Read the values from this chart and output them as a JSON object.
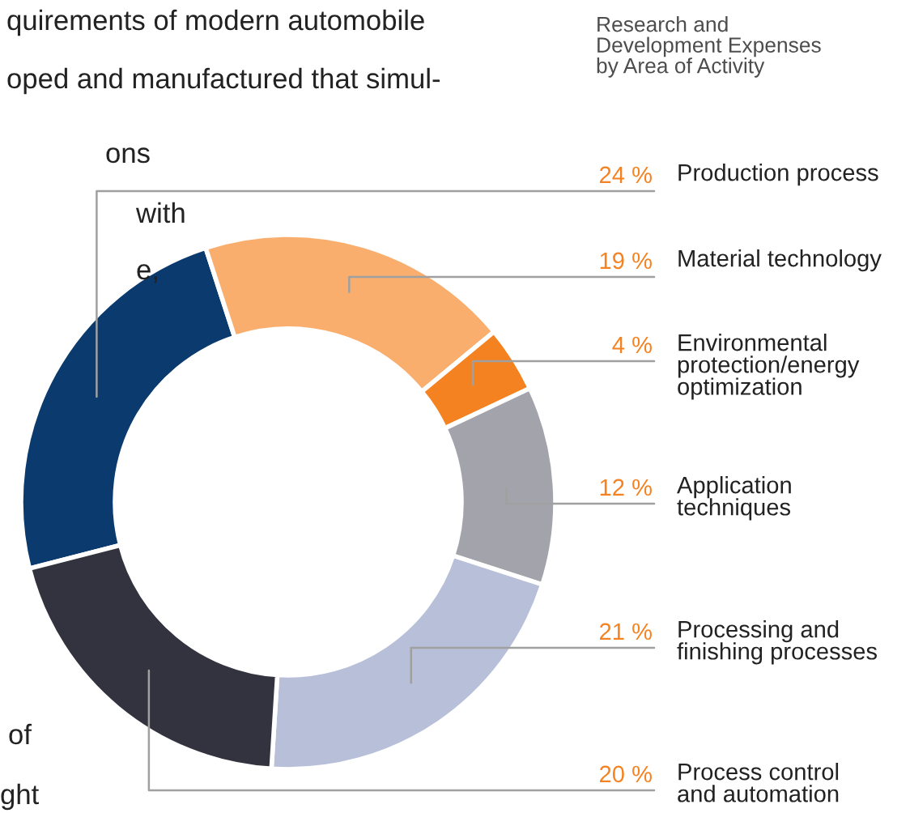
{
  "chart_data": {
    "type": "donut",
    "title": "Research and\nDevelopment Expenses\nby Area of Activity",
    "categories": [
      "Production process",
      "Material technology",
      "Environmental\nprotection/energy\noptimization",
      "Application\ntechniques",
      "Processing and\nfinishing processes",
      "Process control\nand automation"
    ],
    "values": [
      24,
      19,
      4,
      12,
      21,
      20
    ],
    "value_labels": [
      "24 %",
      "19 %",
      "4 %",
      "12 %",
      "21 %",
      "20 %"
    ],
    "colors": [
      "#0b3a6e",
      "#f9ae6e",
      "#f58220",
      "#a3a3ab",
      "#b8bfd8",
      "#33333f"
    ],
    "annotations": [
      "quirements of modern automobile",
      "oped and manufactured that simul-",
      "ons",
      "with",
      "e,",
      "of",
      "ght"
    ]
  }
}
